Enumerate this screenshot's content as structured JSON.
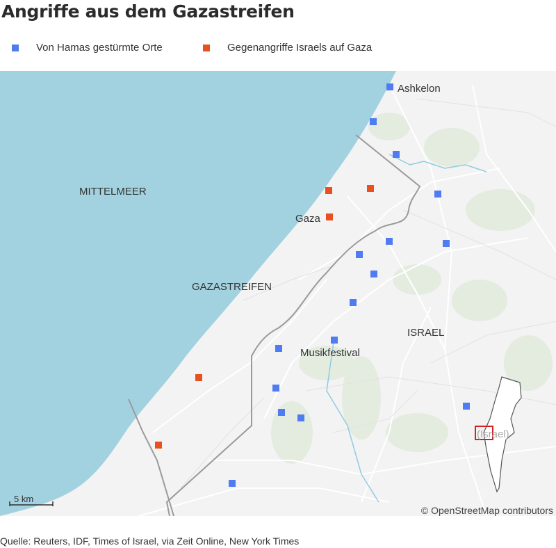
{
  "title": "Angriffe aus dem Gazastreifen",
  "legend": [
    {
      "label": "Von Hamas gestürmte Orte",
      "color": "#4f7cf0"
    },
    {
      "label": "Gegenangriffe Israels auf Gaza",
      "color": "#e8501f"
    }
  ],
  "map": {
    "labels": {
      "sea": "MITTELMEER",
      "gaza_strip": "GAZASTREIFEN",
      "israel": "ISRAEL",
      "ashkelon": "Ashkelon",
      "gaza_city": "Gaza",
      "festival": "Musikfestival",
      "inset": "(Israel)"
    },
    "scale_label": "5 km",
    "attribution": "© OpenStreetMap contributors",
    "colors": {
      "sea": "#a2d2df",
      "land": "#f3f3f3",
      "border": "#9a9a9a",
      "inset_box": "#d32020"
    }
  },
  "source": "Quelle: Reuters, IDF, Times of Israel, via Zeit Online, New York Times"
}
